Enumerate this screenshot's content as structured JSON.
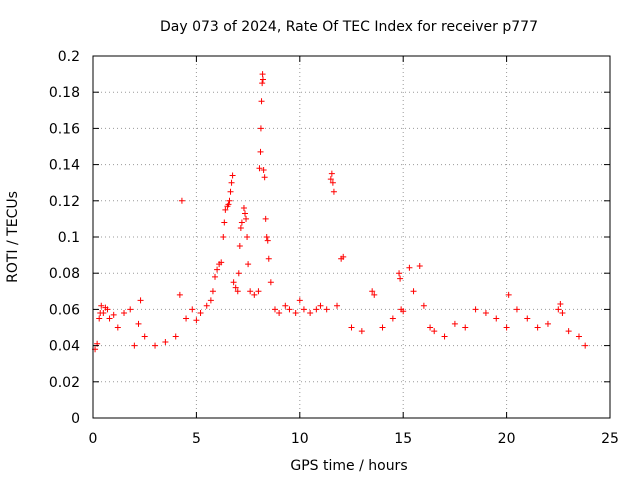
{
  "chart_data": {
    "type": "scatter",
    "title": "Day 073 of 2024, Rate Of TEC Index for receiver p777",
    "xlabel": "GPS time / hours",
    "ylabel": "ROTI / TECUs",
    "xlim": [
      0,
      25
    ],
    "ylim": [
      0,
      0.2
    ],
    "x_ticks": [
      0,
      5,
      10,
      15,
      20,
      25
    ],
    "x_tick_labels": [
      "0",
      "5",
      "10",
      "15",
      "20",
      "25"
    ],
    "y_ticks": [
      0,
      0.02,
      0.04,
      0.06,
      0.08,
      0.1,
      0.12,
      0.14,
      0.16,
      0.18,
      0.2
    ],
    "y_tick_labels": [
      "0",
      "0.02",
      "0.04",
      "0.06",
      "0.08",
      "0.1",
      "0.12",
      "0.14",
      "0.16",
      "0.18",
      "0.2"
    ],
    "grid": true,
    "marker": "+",
    "series": [
      {
        "name": "ROTI",
        "color": "#ff0000",
        "points": [
          [
            0.1,
            0.038
          ],
          [
            0.2,
            0.041
          ],
          [
            0.3,
            0.055
          ],
          [
            0.35,
            0.058
          ],
          [
            0.4,
            0.062
          ],
          [
            0.5,
            0.058
          ],
          [
            0.6,
            0.061
          ],
          [
            0.7,
            0.06
          ],
          [
            0.8,
            0.055
          ],
          [
            1.0,
            0.057
          ],
          [
            1.2,
            0.05
          ],
          [
            1.5,
            0.058
          ],
          [
            1.8,
            0.06
          ],
          [
            2.0,
            0.04
          ],
          [
            2.2,
            0.052
          ],
          [
            2.3,
            0.065
          ],
          [
            2.5,
            0.045
          ],
          [
            3.0,
            0.04
          ],
          [
            3.5,
            0.042
          ],
          [
            4.0,
            0.045
          ],
          [
            4.2,
            0.068
          ],
          [
            4.3,
            0.12
          ],
          [
            4.5,
            0.055
          ],
          [
            4.8,
            0.06
          ],
          [
            5.0,
            0.054
          ],
          [
            5.2,
            0.058
          ],
          [
            5.5,
            0.062
          ],
          [
            5.7,
            0.065
          ],
          [
            5.8,
            0.07
          ],
          [
            5.9,
            0.078
          ],
          [
            6.0,
            0.082
          ],
          [
            6.1,
            0.085
          ],
          [
            6.2,
            0.086
          ],
          [
            6.3,
            0.1
          ],
          [
            6.35,
            0.108
          ],
          [
            6.4,
            0.115
          ],
          [
            6.5,
            0.117
          ],
          [
            6.55,
            0.118
          ],
          [
            6.6,
            0.12
          ],
          [
            6.65,
            0.125
          ],
          [
            6.7,
            0.13
          ],
          [
            6.75,
            0.134
          ],
          [
            6.8,
            0.075
          ],
          [
            6.9,
            0.072
          ],
          [
            7.0,
            0.07
          ],
          [
            7.05,
            0.08
          ],
          [
            7.1,
            0.095
          ],
          [
            7.15,
            0.105
          ],
          [
            7.2,
            0.108
          ],
          [
            7.3,
            0.116
          ],
          [
            7.35,
            0.113
          ],
          [
            7.4,
            0.11
          ],
          [
            7.45,
            0.1
          ],
          [
            7.5,
            0.085
          ],
          [
            7.6,
            0.07
          ],
          [
            7.8,
            0.068
          ],
          [
            8.0,
            0.07
          ],
          [
            8.05,
            0.138
          ],
          [
            8.1,
            0.147
          ],
          [
            8.12,
            0.16
          ],
          [
            8.15,
            0.175
          ],
          [
            8.18,
            0.185
          ],
          [
            8.2,
            0.19
          ],
          [
            8.22,
            0.187
          ],
          [
            8.25,
            0.137
          ],
          [
            8.3,
            0.133
          ],
          [
            8.35,
            0.11
          ],
          [
            8.4,
            0.1
          ],
          [
            8.45,
            0.098
          ],
          [
            8.5,
            0.088
          ],
          [
            8.6,
            0.075
          ],
          [
            8.8,
            0.06
          ],
          [
            9.0,
            0.058
          ],
          [
            9.3,
            0.062
          ],
          [
            9.5,
            0.06
          ],
          [
            9.8,
            0.058
          ],
          [
            10.0,
            0.065
          ],
          [
            10.2,
            0.06
          ],
          [
            10.5,
            0.058
          ],
          [
            10.8,
            0.06
          ],
          [
            11.0,
            0.062
          ],
          [
            11.3,
            0.06
          ],
          [
            11.5,
            0.132
          ],
          [
            11.55,
            0.135
          ],
          [
            11.6,
            0.13
          ],
          [
            11.65,
            0.125
          ],
          [
            11.8,
            0.062
          ],
          [
            12.0,
            0.088
          ],
          [
            12.1,
            0.089
          ],
          [
            12.5,
            0.05
          ],
          [
            13.0,
            0.048
          ],
          [
            13.5,
            0.07
          ],
          [
            13.6,
            0.068
          ],
          [
            14.0,
            0.05
          ],
          [
            14.5,
            0.055
          ],
          [
            14.8,
            0.08
          ],
          [
            14.85,
            0.077
          ],
          [
            14.9,
            0.06
          ],
          [
            15.0,
            0.059
          ],
          [
            15.3,
            0.083
          ],
          [
            15.5,
            0.07
          ],
          [
            15.8,
            0.084
          ],
          [
            16.0,
            0.062
          ],
          [
            16.3,
            0.05
          ],
          [
            16.5,
            0.048
          ],
          [
            17.0,
            0.045
          ],
          [
            17.5,
            0.052
          ],
          [
            18.0,
            0.05
          ],
          [
            18.5,
            0.06
          ],
          [
            19.0,
            0.058
          ],
          [
            19.5,
            0.055
          ],
          [
            20.0,
            0.05
          ],
          [
            20.1,
            0.068
          ],
          [
            20.5,
            0.06
          ],
          [
            21.0,
            0.055
          ],
          [
            21.5,
            0.05
          ],
          [
            22.0,
            0.052
          ],
          [
            22.5,
            0.06
          ],
          [
            22.6,
            0.063
          ],
          [
            22.7,
            0.058
          ],
          [
            23.0,
            0.048
          ],
          [
            23.5,
            0.045
          ],
          [
            23.8,
            0.04
          ]
        ]
      }
    ]
  }
}
